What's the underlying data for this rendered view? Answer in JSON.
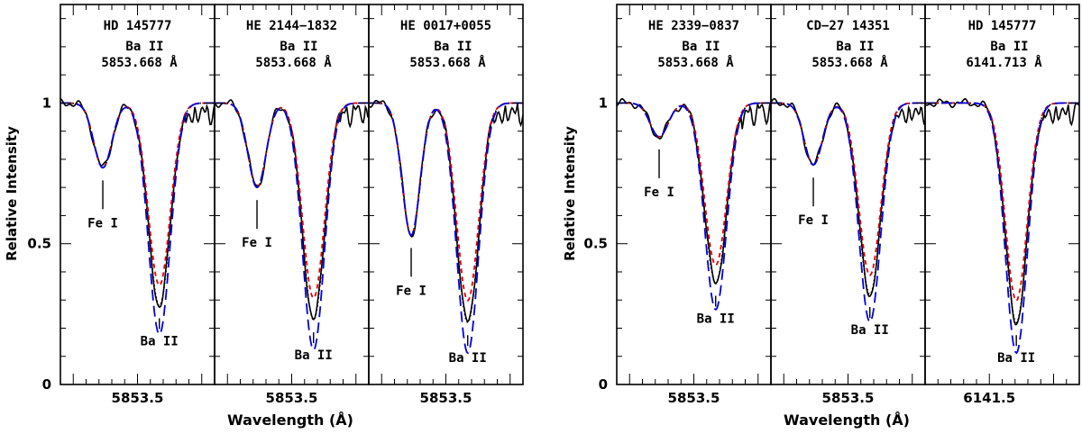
{
  "chart_data": {
    "type": "line",
    "ylabel": "Relative Intensity",
    "xlabel": "Wavelength (Å)",
    "y_ticks": [
      "0",
      "0.5",
      "1"
    ],
    "ylim": [
      0,
      1.35
    ],
    "line_styles": {
      "observed": {
        "color": "#000000",
        "style": "solid"
      },
      "synthetic_a": {
        "color": "#000000",
        "style": "dotted"
      },
      "synthetic_b": {
        "color": "#e00000",
        "style": "dashed"
      },
      "synthetic_c": {
        "color": "#0000dd",
        "style": "long-dashed"
      }
    },
    "panels": [
      {
        "group": 0,
        "star": "HD 145777",
        "ion": "Ba II",
        "line": "5853.668 Å",
        "xtick": "5853.5",
        "xlim": [
          5852.9,
          5854.1
        ],
        "features": [
          {
            "label": "Fe I",
            "x": 5853.23,
            "depth": 0.77
          },
          {
            "label": "Ba II",
            "x": 5853.67,
            "depth": 0.28
          }
        ]
      },
      {
        "group": 0,
        "star": "HE 2144−1832",
        "ion": "Ba II",
        "line": "5853.668 Å",
        "xtick": "5853.5",
        "xlim": [
          5852.9,
          5854.1
        ],
        "features": [
          {
            "label": "Fe I",
            "x": 5853.23,
            "depth": 0.7
          },
          {
            "label": "Ba II",
            "x": 5853.67,
            "depth": 0.23
          }
        ]
      },
      {
        "group": 0,
        "star": "HE 0017+0055",
        "ion": "Ba II",
        "line": "5853.668 Å",
        "xtick": "5853.5",
        "xlim": [
          5852.9,
          5854.1
        ],
        "features": [
          {
            "label": "Fe I",
            "x": 5853.23,
            "depth": 0.53
          },
          {
            "label": "Ba II",
            "x": 5853.67,
            "depth": 0.22
          }
        ]
      },
      {
        "group": 1,
        "star": "HE 2339−0837",
        "ion": "Ba II",
        "line": "5853.668 Å",
        "xtick": "5853.5",
        "xlim": [
          5852.9,
          5854.1
        ],
        "features": [
          {
            "label": "Fe I",
            "x": 5853.23,
            "depth": 0.88
          },
          {
            "label": "Ba II",
            "x": 5853.67,
            "depth": 0.36
          }
        ]
      },
      {
        "group": 1,
        "star": "CD−27 14351",
        "ion": "Ba II",
        "line": "5853.668 Å",
        "xtick": "5853.5",
        "xlim": [
          5852.9,
          5854.1
        ],
        "features": [
          {
            "label": "Fe I",
            "x": 5853.23,
            "depth": 0.78
          },
          {
            "label": "Ba II",
            "x": 5853.67,
            "depth": 0.32
          }
        ]
      },
      {
        "group": 1,
        "star": "HD 145777",
        "ion": "Ba II",
        "line": "6141.713 Å",
        "xtick": "6141.5",
        "xlim": [
          6141.0,
          6142.2
        ],
        "features": [
          {
            "label": "Ba II",
            "x": 6141.71,
            "depth": 0.22
          }
        ]
      }
    ]
  }
}
